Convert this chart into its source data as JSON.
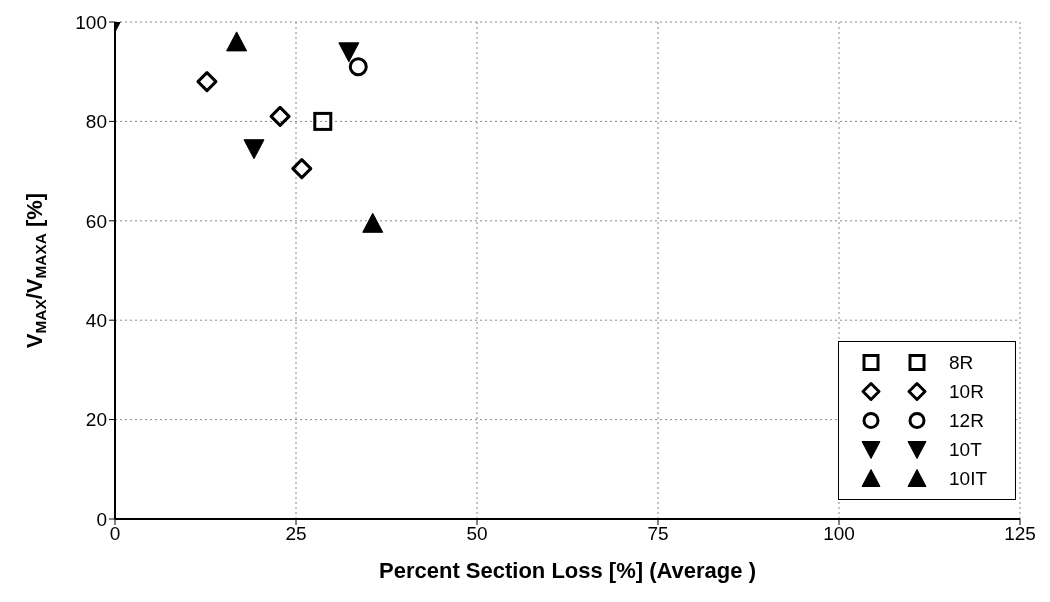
{
  "chart_data": {
    "type": "scatter",
    "xlabel": "Percent Section Loss [%] (Average )",
    "ylabel": "V$_{MAX}$/V$_{MAXA}$ [%]",
    "xlim": [
      0,
      125
    ],
    "xticks": [
      0,
      25,
      50,
      75,
      100,
      125
    ],
    "ylim": [
      0,
      100
    ],
    "yticks": [
      0,
      20,
      40,
      60,
      80,
      100
    ],
    "grid": true,
    "legend": "bottom right",
    "series": [
      {
        "name": "8R",
        "color": "#000000",
        "marker": "square",
        "x": [
          28.7
        ],
        "values": [
          80
        ]
      },
      {
        "name": "10R",
        "color": "#000000",
        "marker": "diamond",
        "x": [
          12.7,
          22.8,
          25.8
        ],
        "values": [
          88,
          81,
          70.5
        ]
      },
      {
        "name": "12R",
        "color": "#000000",
        "marker": "circle",
        "x": [
          33.6
        ],
        "values": [
          91
        ]
      },
      {
        "name": "10T",
        "color": "#000000",
        "marker": "triangle-down",
        "x": [
          0,
          32.3,
          19.2
        ],
        "values": [
          100,
          94,
          74.5
        ]
      },
      {
        "name": "10IT",
        "color": "#000000",
        "marker": "triangle",
        "x": [
          16.8,
          35.6
        ],
        "values": [
          96,
          59.5
        ]
      }
    ]
  }
}
